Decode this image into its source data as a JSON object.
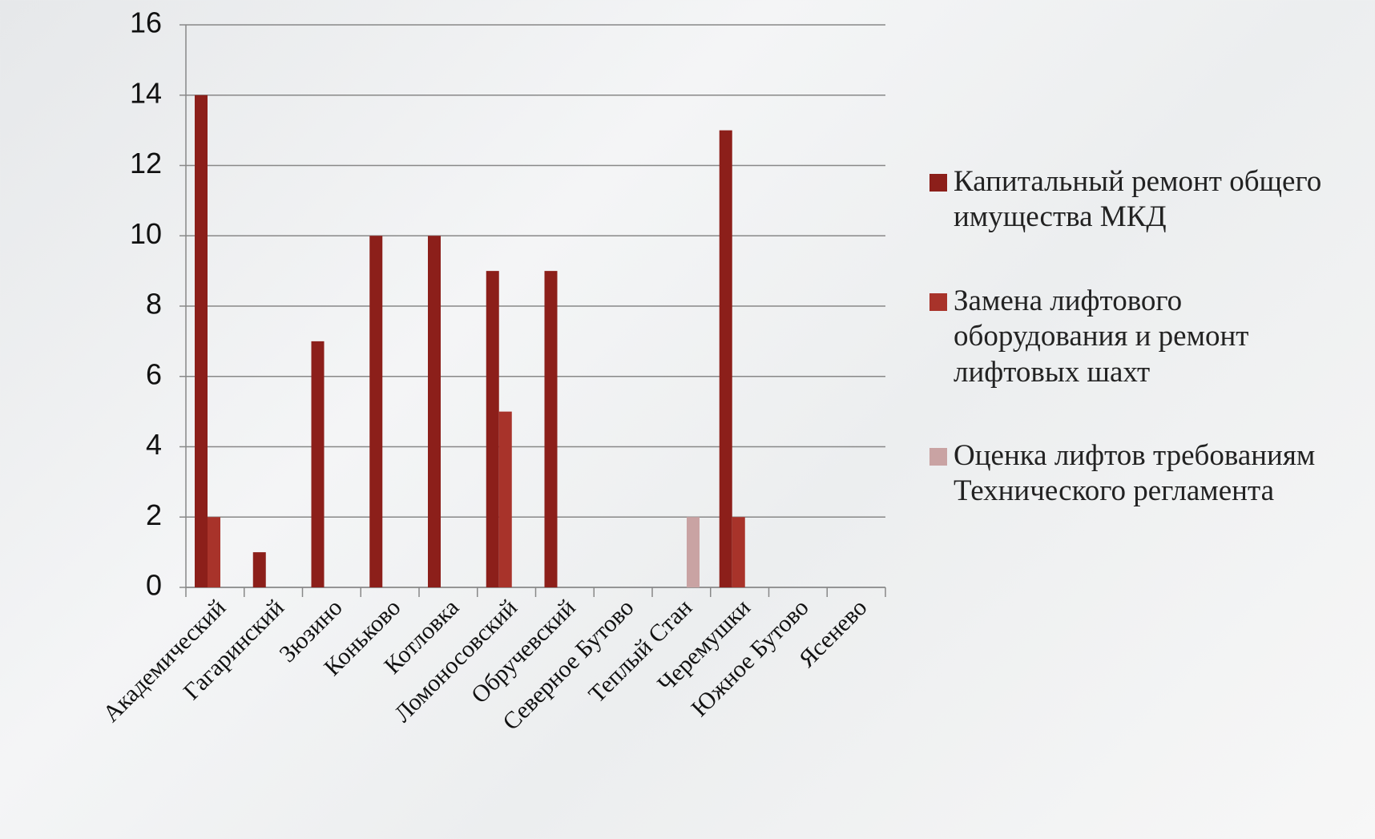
{
  "chart_data": {
    "type": "bar",
    "categories": [
      "Академический",
      "Гагаринский",
      "Зюзино",
      "Коньково",
      "Котловка",
      "Ломоносовский",
      "Обручевский",
      "Северное Бутово",
      "Теплый Стан",
      "Черемушки",
      "Южное Бутово",
      "Ясенево"
    ],
    "series": [
      {
        "name": "Капитальный ремонт общего имущества МКД",
        "color": "#8c1f1a",
        "values": [
          14,
          1,
          7,
          10,
          10,
          9,
          9,
          0,
          0,
          13,
          0,
          0
        ]
      },
      {
        "name": "Замена лифтового оборудования и ремонт лифтовых шахт",
        "color": "#a8332a",
        "values": [
          2,
          0,
          0,
          0,
          0,
          5,
          0,
          0,
          0,
          2,
          0,
          0
        ]
      },
      {
        "name": "Оценка лифтов требованиям Технического регламента",
        "color": "#c9a3a3",
        "values": [
          0,
          0,
          0,
          0,
          0,
          0,
          0,
          0,
          2,
          0,
          0,
          0
        ]
      }
    ],
    "ylim": [
      0,
      16
    ],
    "yticks": [
      0,
      2,
      4,
      6,
      8,
      10,
      12,
      14,
      16
    ],
    "grid": true,
    "legend": "right"
  }
}
